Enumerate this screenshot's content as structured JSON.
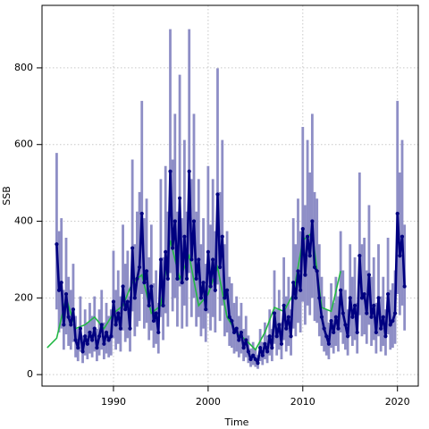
{
  "chart_data": {
    "type": "line",
    "xlabel": "Time",
    "ylabel": "SSB",
    "xlim": [
      1982.45,
      2022.2
    ],
    "ylim": [
      -30,
      963
    ],
    "xticks": [
      1990,
      2000,
      2010,
      2020
    ],
    "yticks": [
      0,
      200,
      400,
      600,
      800
    ],
    "grid": true,
    "x": [
      1984,
      1984.25,
      1984.5,
      1984.75,
      1985,
      1985.25,
      1985.5,
      1985.75,
      1986,
      1986.25,
      1986.5,
      1986.75,
      1987,
      1987.25,
      1987.5,
      1987.75,
      1988,
      1988.25,
      1988.5,
      1988.75,
      1989,
      1989.25,
      1989.5,
      1989.75,
      1990,
      1990.25,
      1990.5,
      1990.75,
      1991,
      1991.25,
      1991.5,
      1991.75,
      1992,
      1992.25,
      1992.5,
      1992.75,
      1993,
      1993.25,
      1993.5,
      1993.75,
      1994,
      1994.25,
      1994.5,
      1994.75,
      1995,
      1995.25,
      1995.5,
      1995.75,
      1996,
      1996.25,
      1996.5,
      1996.75,
      1997,
      1997.25,
      1997.5,
      1997.75,
      1998,
      1998.25,
      1998.5,
      1998.75,
      1999,
      1999.25,
      1999.5,
      1999.75,
      2000,
      2000.25,
      2000.5,
      2000.75,
      2001,
      2001.25,
      2001.5,
      2001.75,
      2002,
      2002.25,
      2002.5,
      2002.75,
      2003,
      2003.25,
      2003.5,
      2003.75,
      2004,
      2004.25,
      2004.5,
      2004.75,
      2005,
      2005.25,
      2005.5,
      2005.75,
      2006,
      2006.25,
      2006.5,
      2006.75,
      2007,
      2007.25,
      2007.5,
      2007.75,
      2008,
      2008.25,
      2008.5,
      2008.75,
      2009,
      2009.25,
      2009.5,
      2009.75,
      2010,
      2010.25,
      2010.5,
      2010.75,
      2011,
      2011.25,
      2011.5,
      2011.75,
      2012,
      2012.25,
      2012.5,
      2012.75,
      2013,
      2013.25,
      2013.5,
      2013.75,
      2014,
      2014.25,
      2014.5,
      2014.75,
      2015,
      2015.25,
      2015.5,
      2015.75,
      2016,
      2016.25,
      2016.5,
      2016.75,
      2017,
      2017.25,
      2017.5,
      2017.75,
      2018,
      2018.25,
      2018.5,
      2018.75,
      2019,
      2019.25,
      2019.5,
      2019.75,
      2020,
      2020.25,
      2020.5,
      2020.75
    ],
    "band": {
      "color": "#8e8ec6",
      "lower": [
        170,
        110,
        120,
        65,
        105,
        75,
        65,
        85,
        45,
        35,
        60,
        30,
        50,
        40,
        55,
        45,
        60,
        35,
        50,
        65,
        40,
        55,
        45,
        50,
        95,
        65,
        80,
        60,
        115,
        85,
        95,
        60,
        165,
        100,
        125,
        140,
        210,
        120,
        135,
        90,
        115,
        70,
        80,
        55,
        150,
        90,
        160,
        125,
        265,
        165,
        200,
        125,
        230,
        120,
        180,
        125,
        265,
        150,
        200,
        125,
        150,
        100,
        120,
        85,
        160,
        115,
        150,
        110,
        235,
        140,
        180,
        100,
        110,
        75,
        70,
        55,
        60,
        45,
        55,
        35,
        45,
        30,
        20,
        25,
        20,
        15,
        35,
        25,
        40,
        30,
        50,
        35,
        80,
        50,
        65,
        40,
        90,
        60,
        75,
        50,
        120,
        100,
        135,
        110,
        190,
        130,
        180,
        155,
        200,
        140,
        135,
        100,
        75,
        60,
        50,
        40,
        70,
        55,
        75,
        60,
        110,
        80,
        65,
        50,
        100,
        75,
        90,
        55,
        155,
        100,
        105,
        80,
        130,
        75,
        90,
        55,
        100,
        60,
        75,
        50,
        105,
        65,
        70,
        80,
        210,
        155,
        180,
        115
      ],
      "upper": [
        578,
        374,
        408,
        221,
        357,
        255,
        221,
        289,
        153,
        119,
        204,
        102,
        170,
        136,
        187,
        153,
        204,
        119,
        170,
        221,
        136,
        187,
        153,
        170,
        323,
        221,
        272,
        204,
        391,
        289,
        323,
        204,
        561,
        340,
        425,
        476,
        714,
        408,
        459,
        306,
        391,
        238,
        272,
        187,
        510,
        306,
        544,
        425,
        901,
        561,
        680,
        425,
        782,
        408,
        612,
        425,
        901,
        510,
        680,
        425,
        510,
        340,
        408,
        289,
        544,
        391,
        510,
        374,
        799,
        476,
        612,
        340,
        374,
        255,
        238,
        187,
        204,
        153,
        187,
        119,
        153,
        102,
        68,
        85,
        68,
        51,
        119,
        85,
        136,
        102,
        170,
        119,
        272,
        170,
        221,
        136,
        306,
        204,
        255,
        170,
        408,
        340,
        459,
        374,
        646,
        442,
        612,
        527,
        680,
        476,
        459,
        340,
        255,
        204,
        170,
        136,
        238,
        187,
        255,
        204,
        374,
        272,
        221,
        170,
        340,
        255,
        306,
        187,
        527,
        340,
        357,
        272,
        442,
        255,
        306,
        187,
        340,
        204,
        255,
        170,
        357,
        221,
        238,
        272,
        714,
        527,
        612,
        391
      ]
    },
    "series": [
      {
        "color": "#000080",
        "values": [
          340,
          220,
          240,
          130,
          210,
          150,
          130,
          170,
          90,
          70,
          120,
          60,
          100,
          80,
          110,
          90,
          120,
          70,
          100,
          130,
          80,
          110,
          90,
          100,
          190,
          130,
          160,
          120,
          230,
          170,
          190,
          120,
          330,
          200,
          250,
          280,
          420,
          240,
          270,
          180,
          230,
          140,
          160,
          110,
          300,
          180,
          320,
          250,
          530,
          330,
          400,
          250,
          460,
          240,
          360,
          250,
          530,
          300,
          400,
          250,
          300,
          200,
          240,
          170,
          320,
          230,
          300,
          220,
          470,
          280,
          360,
          200,
          220,
          150,
          140,
          110,
          120,
          90,
          110,
          70,
          90,
          60,
          40,
          50,
          40,
          30,
          70,
          50,
          80,
          60,
          100,
          70,
          160,
          100,
          130,
          80,
          180,
          120,
          150,
          100,
          240,
          200,
          270,
          220,
          380,
          260,
          360,
          310,
          400,
          280,
          270,
          200,
          150,
          120,
          100,
          80,
          140,
          110,
          150,
          120,
          220,
          160,
          130,
          100,
          200,
          150,
          180,
          110,
          310,
          200,
          210,
          160,
          260,
          150,
          180,
          110,
          200,
          120,
          150,
          100,
          210,
          130,
          140,
          160,
          420,
          310,
          360,
          230
        ]
      },
      {
        "color": "#22b845",
        "x": [
          1983,
          1984,
          1985,
          1986,
          1987,
          1988,
          1989,
          1990,
          1991,
          1992,
          1993,
          1994,
          1995,
          1996,
          1997,
          1998,
          1999,
          2000,
          2001,
          2002,
          2003,
          2004,
          2005,
          2006,
          2007,
          2008,
          2009,
          2010,
          2011,
          2012,
          2013,
          2014
        ],
        "values": [
          70,
          95,
          200,
          120,
          130,
          150,
          120,
          160,
          180,
          240,
          260,
          160,
          180,
          350,
          250,
          310,
          180,
          210,
          280,
          150,
          110,
          90,
          65,
          110,
          175,
          165,
          210,
          350,
          370,
          175,
          165,
          270
        ]
      }
    ]
  }
}
